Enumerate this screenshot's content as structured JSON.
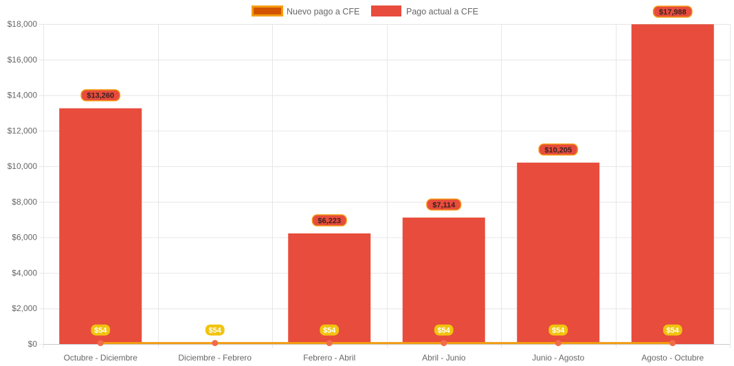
{
  "chart_data": {
    "type": "bar",
    "categories": [
      "Octubre - Diciembre",
      "Diciembre - Febrero",
      "Febrero - Abril",
      "Abril - Junio",
      "Junio - Agosto",
      "Agosto - Octubre"
    ],
    "series": [
      {
        "name": "Nuevo pago a CFE",
        "kind": "line",
        "values": [
          54,
          54,
          54,
          54,
          54,
          54
        ],
        "labels": [
          "$54",
          "$54",
          "$54",
          "$54",
          "$54",
          "$54"
        ],
        "color": "#f39c12",
        "legend_fill": "#d35400",
        "point_color": "#f26b4a",
        "label_bg": "#f1c40f"
      },
      {
        "name": "Pago actual a CFE",
        "kind": "bar",
        "values": [
          13260,
          0,
          6223,
          7114,
          10205,
          17988
        ],
        "labels": [
          "$13,260",
          "",
          "$6,223",
          "$7,114",
          "$10,205",
          "$17,988"
        ],
        "color": "#e74c3c",
        "label_border": "#f39c12",
        "label_text": "#3d1f1f"
      }
    ],
    "yticks": [
      "$0",
      "$2,000",
      "$4,000",
      "$6,000",
      "$8,000",
      "$10,000",
      "$12,000",
      "$14,000",
      "$16,000",
      "$18,000"
    ],
    "ylim": [
      0,
      18000
    ],
    "ystep": 2000,
    "grid": true,
    "legend_position": "top-center",
    "title": "",
    "xlabel": "",
    "ylabel": ""
  }
}
